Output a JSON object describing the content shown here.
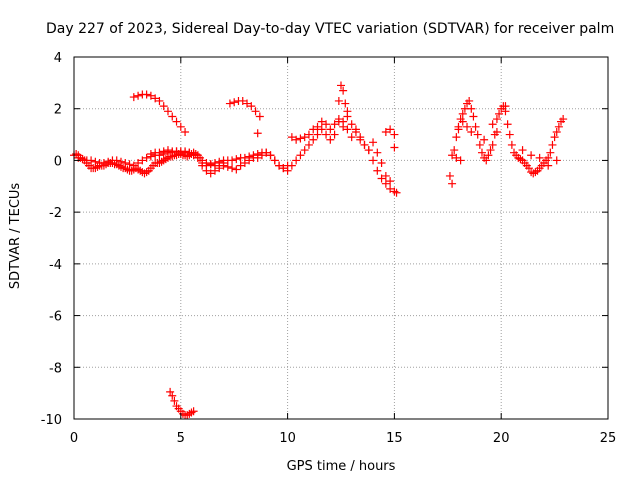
{
  "chart_data": {
    "type": "scatter",
    "title": "Day 227 of 2023, Sidereal Day-to-day VTEC variation (SDTVAR) for receiver palm",
    "xlabel": "GPS time / hours",
    "ylabel": "SDTVAR / TECUs",
    "xlim": [
      0,
      25
    ],
    "ylim": [
      -10,
      4
    ],
    "xticks": [
      0,
      5,
      10,
      15,
      20,
      25
    ],
    "yticks": [
      -10,
      -8,
      -6,
      -4,
      -2,
      0,
      2,
      4
    ],
    "xtick_labels": [
      "0",
      "5",
      "10",
      "15",
      "20",
      "25"
    ],
    "ytick_labels": [
      "-10",
      "-8",
      "-6",
      "-4",
      "-2",
      "0",
      "2",
      "4"
    ],
    "grid": true,
    "marker": "+",
    "color": "#ff0000",
    "series": [
      {
        "name": "SDTVAR",
        "x": [
          0.0,
          0.1,
          0.2,
          0.3,
          0.4,
          0.5,
          0.6,
          0.7,
          0.8,
          0.9,
          1.0,
          1.1,
          1.2,
          1.3,
          1.4,
          1.5,
          1.6,
          1.7,
          1.8,
          1.9,
          2.0,
          2.1,
          2.2,
          2.3,
          2.4,
          2.5,
          2.6,
          2.7,
          2.8,
          2.9,
          3.0,
          3.1,
          3.2,
          3.3,
          3.4,
          3.5,
          3.6,
          3.7,
          3.8,
          3.9,
          4.0,
          4.1,
          4.2,
          4.3,
          4.4,
          4.5,
          4.6,
          4.7,
          4.8,
          4.9,
          5.0,
          5.1,
          5.2,
          5.3,
          5.4,
          5.5,
          5.6,
          5.7,
          5.8,
          5.9,
          6.0,
          6.2,
          6.4,
          6.6,
          6.8,
          7.0,
          7.2,
          7.4,
          7.6,
          7.8,
          8.0,
          8.2,
          8.4,
          8.6,
          8.8,
          9.0,
          9.2,
          9.4,
          9.6,
          9.8,
          10.0,
          10.2,
          10.4,
          10.6,
          10.8,
          11.0,
          11.2,
          11.4,
          11.6,
          11.8,
          12.0,
          12.2,
          12.4,
          12.6,
          12.8,
          13.0,
          13.2,
          13.4,
          13.6,
          13.8,
          14.0,
          14.2,
          14.4,
          14.6,
          14.8,
          15.0,
          15.1,
          0.2,
          0.4,
          0.6,
          0.8,
          1.0,
          1.2,
          1.4,
          1.6,
          1.8,
          2.0,
          2.2,
          2.4,
          2.6,
          2.8,
          3.0,
          3.2,
          3.4,
          3.6,
          3.8,
          4.0,
          4.2,
          4.4,
          4.6,
          4.8,
          5.0,
          5.2,
          5.4,
          5.6,
          5.8,
          6.0,
          6.2,
          6.4,
          6.6,
          6.8,
          7.0,
          7.2,
          7.4,
          7.6,
          7.8,
          8.0,
          8.2,
          8.4,
          8.6,
          8.8,
          9.0,
          9.2,
          9.4,
          9.6,
          9.8,
          10.0,
          2.8,
          3.0,
          3.2,
          3.4,
          3.6,
          3.8,
          4.0,
          4.2,
          4.4,
          4.6,
          4.8,
          5.0,
          5.2,
          7.3,
          7.5,
          7.7,
          7.9,
          8.1,
          8.3,
          8.5,
          8.7,
          3.6,
          3.8,
          4.0,
          4.2,
          4.4,
          4.6,
          4.8,
          5.0,
          5.2,
          5.4,
          5.6,
          5.8,
          6.0,
          6.2,
          6.4,
          6.6,
          6.8,
          7.0,
          10.2,
          10.4,
          10.6,
          10.8,
          11.0,
          11.2,
          11.4,
          11.6,
          11.8,
          12.0,
          12.2,
          12.4,
          12.6,
          12.8,
          13.0,
          13.2,
          13.4,
          13.6,
          13.8,
          14.0,
          14.2,
          14.4,
          14.6,
          14.8,
          15.0,
          12.4,
          12.5,
          12.6,
          12.7,
          12.8,
          14.6,
          14.8,
          15.0,
          17.6,
          17.7,
          17.8,
          17.9,
          18.0,
          18.1,
          18.2,
          18.3,
          18.4,
          18.5,
          18.6,
          18.7,
          18.8,
          18.9,
          19.0,
          19.1,
          19.2,
          19.3,
          19.4,
          19.5,
          19.6,
          19.7,
          19.8,
          19.9,
          20.0,
          20.1,
          20.2,
          20.3,
          20.4,
          20.5,
          20.6,
          20.7,
          20.8,
          20.9,
          21.0,
          21.1,
          21.2,
          21.3,
          21.4,
          21.5,
          21.6,
          21.7,
          21.8,
          21.9,
          22.0,
          22.1,
          22.2,
          22.3,
          22.4,
          22.5,
          22.6,
          22.7,
          22.8,
          22.9,
          18.0,
          18.2,
          18.4,
          18.6,
          19.2,
          19.6,
          19.8,
          20.2,
          17.7,
          17.9,
          18.1,
          21.0,
          21.4,
          21.8,
          22.2,
          22.6,
          4.5,
          4.6,
          4.7,
          4.8,
          4.9,
          5.0,
          5.1,
          5.2,
          5.3,
          5.4,
          5.5,
          5.6,
          8.6
        ],
        "y": [
          0.2,
          0.25,
          0.2,
          0.1,
          0.05,
          0.0,
          -0.1,
          -0.2,
          -0.3,
          -0.3,
          -0.3,
          -0.25,
          -0.2,
          -0.2,
          -0.2,
          -0.15,
          -0.1,
          -0.1,
          -0.1,
          -0.15,
          -0.15,
          -0.2,
          -0.25,
          -0.3,
          -0.3,
          -0.35,
          -0.4,
          -0.4,
          -0.35,
          -0.3,
          -0.35,
          -0.4,
          -0.45,
          -0.5,
          -0.45,
          -0.4,
          -0.3,
          -0.2,
          -0.1,
          -0.1,
          -0.1,
          -0.05,
          0.0,
          0.05,
          0.1,
          0.15,
          0.15,
          0.2,
          0.2,
          0.25,
          0.25,
          0.2,
          0.2,
          0.15,
          0.2,
          0.25,
          0.3,
          0.25,
          0.2,
          0.1,
          -0.2,
          -0.4,
          -0.5,
          -0.4,
          -0.3,
          -0.2,
          -0.25,
          -0.3,
          -0.35,
          -0.2,
          -0.1,
          0.0,
          0.1,
          0.1,
          0.2,
          0.3,
          0.2,
          0.0,
          -0.2,
          -0.3,
          -0.4,
          -0.2,
          0.0,
          0.2,
          0.4,
          0.6,
          0.8,
          1.0,
          1.2,
          1.0,
          0.8,
          1.0,
          1.5,
          1.3,
          1.2,
          0.9,
          1.1,
          0.8,
          0.6,
          0.4,
          0.0,
          -0.4,
          -0.7,
          -0.9,
          -1.1,
          -1.2,
          -1.25,
          0.1,
          0.05,
          0.0,
          0.0,
          -0.05,
          -0.1,
          -0.1,
          -0.05,
          0.0,
          0.0,
          -0.05,
          -0.1,
          -0.15,
          -0.2,
          -0.1,
          0.0,
          0.1,
          0.15,
          0.2,
          0.2,
          0.25,
          0.3,
          0.3,
          0.35,
          0.35,
          0.3,
          0.3,
          0.2,
          0.1,
          0.0,
          -0.1,
          -0.15,
          -0.2,
          -0.2,
          -0.1,
          0.0,
          0.0,
          0.05,
          0.1,
          0.1,
          0.15,
          0.2,
          0.25,
          0.3,
          0.3,
          0.2,
          0.0,
          -0.2,
          -0.3,
          -0.2,
          2.45,
          2.5,
          2.55,
          2.55,
          2.5,
          2.4,
          2.3,
          2.1,
          1.9,
          1.7,
          1.5,
          1.3,
          1.1,
          2.2,
          2.25,
          2.3,
          2.3,
          2.2,
          2.1,
          1.9,
          1.7,
          0.25,
          0.3,
          0.3,
          0.35,
          0.4,
          0.35,
          0.35,
          0.3,
          0.35,
          0.3,
          0.25,
          0.1,
          -0.1,
          -0.2,
          -0.15,
          -0.1,
          -0.05,
          0.0,
          0.9,
          0.8,
          0.85,
          0.9,
          1.0,
          1.2,
          1.3,
          1.5,
          1.4,
          1.2,
          1.4,
          1.6,
          1.5,
          1.7,
          1.4,
          1.2,
          0.9,
          0.6,
          0.4,
          0.7,
          0.3,
          -0.1,
          -0.6,
          -0.8,
          0.5,
          2.3,
          2.9,
          2.7,
          2.2,
          1.9,
          1.1,
          1.2,
          1.0,
          -0.6,
          -0.9,
          0.4,
          0.9,
          1.3,
          1.6,
          1.8,
          2.0,
          2.2,
          2.3,
          2.0,
          1.7,
          1.3,
          1.0,
          0.6,
          0.3,
          0.1,
          0.0,
          0.2,
          0.4,
          0.6,
          1.0,
          1.6,
          1.8,
          2.0,
          2.1,
          1.9,
          1.4,
          1.0,
          0.6,
          0.3,
          0.2,
          0.1,
          0.05,
          0.0,
          -0.1,
          -0.2,
          -0.3,
          -0.45,
          -0.5,
          -0.45,
          -0.4,
          -0.3,
          -0.2,
          -0.1,
          0.0,
          0.1,
          0.3,
          0.6,
          0.9,
          1.1,
          1.3,
          1.5,
          1.6,
          1.2,
          1.5,
          1.3,
          1.1,
          0.8,
          1.4,
          1.1,
          2.1,
          0.2,
          0.1,
          0.0,
          0.4,
          0.2,
          0.1,
          -0.2,
          0.0,
          -8.95,
          -9.1,
          -9.3,
          -9.5,
          -9.6,
          -9.7,
          -9.8,
          -9.85,
          -9.85,
          -9.8,
          -9.75,
          -9.7,
          1.05
        ]
      }
    ]
  }
}
